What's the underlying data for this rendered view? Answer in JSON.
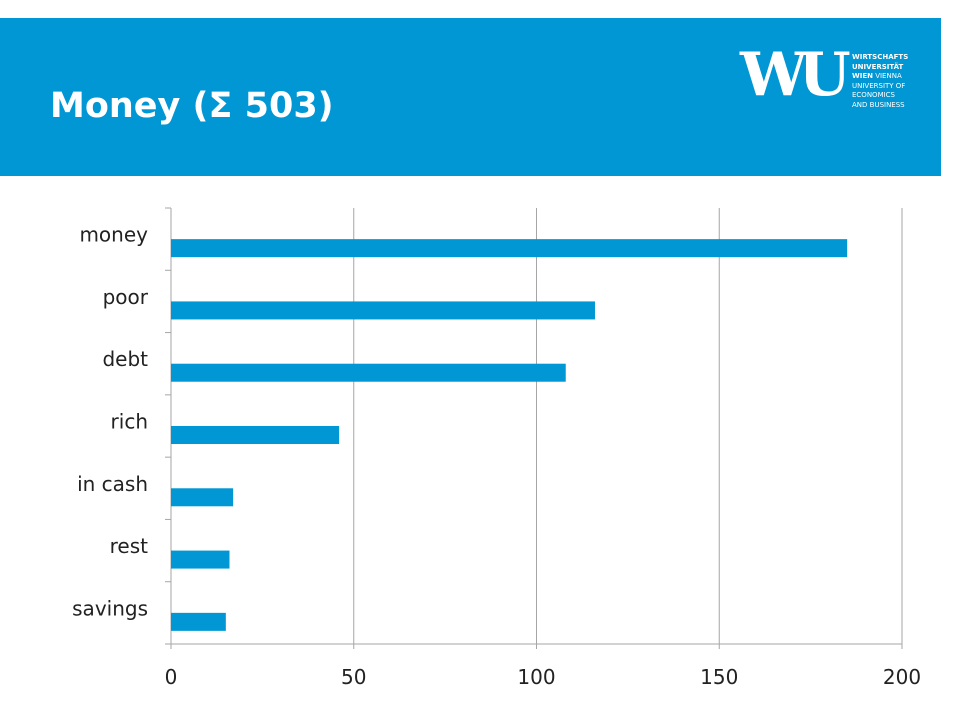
{
  "slide": {
    "title": "Money (Σ 503)"
  },
  "logo": {
    "mark": "WU",
    "lines": [
      "WIRTSCHAFTS",
      "UNIVERSITÄT",
      "WIEN",
      "VIENNA",
      "UNIVERSITY OF",
      "ECONOMICS",
      "AND BUSINESS"
    ]
  },
  "colors": {
    "brand": "#0097D4",
    "bar": "#0097D4",
    "grid": "#a6a6a6",
    "text": "#222222"
  },
  "chart_data": {
    "type": "bar",
    "orientation": "horizontal",
    "categories": [
      "money",
      "poor",
      "debt",
      "rich",
      "in cash",
      "rest",
      "savings"
    ],
    "values": [
      185,
      116,
      108,
      46,
      17,
      16,
      15
    ],
    "xlim": [
      0,
      200
    ],
    "xticks": [
      0,
      50,
      100,
      150,
      200
    ],
    "grid": true,
    "legend": "none"
  }
}
